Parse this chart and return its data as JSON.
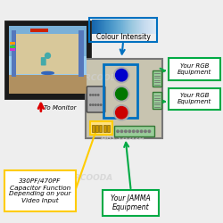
{
  "bg_color": "#eeeeee",
  "watermark_text": "ARCOODA",
  "watermark_color": "#d0d0d0",
  "labels": {
    "colour_intensity": "Colour Intensity",
    "to_monitor": "To Monitor",
    "rgb_eq1": "Your RGB\nEquipment",
    "rgb_eq2": "Your RGB\nEquipment",
    "jamma_eq": "Your JAMMA\nEquipment",
    "capacitor": "330PF/470PF\nCapacitor Function\nDepending on your\nVideo Input"
  },
  "colors": {
    "blue_box": "#0070c0",
    "green_box": "#00aa44",
    "yellow_box": "#ffcc00",
    "monitor_frame": "#1a1a1a",
    "arrow_red": "#dd0000",
    "arrow_green": "#00aa44",
    "arrow_blue": "#0070c0",
    "knob_blue": "#0000cc",
    "knob_green": "#007700",
    "knob_red": "#cc0000",
    "white": "#ffffff",
    "black": "#000000",
    "pcb_bg": "#c8c4b0"
  }
}
